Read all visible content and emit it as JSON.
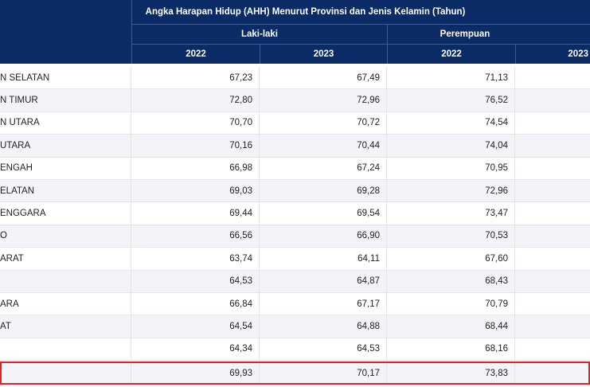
{
  "table": {
    "title": "Angka Harapan Hidup (AHH) Menurut Provinsi dan Jenis Kelamin (Tahun)",
    "groups": [
      "Laki-laki",
      "Perempuan"
    ],
    "years": [
      "2022",
      "2023",
      "2022",
      "2023"
    ],
    "rows": [
      {
        "name": "N SELATAN",
        "values": [
          "67,23",
          "67,49",
          "71,13",
          ""
        ]
      },
      {
        "name": "N TIMUR",
        "values": [
          "72,80",
          "72,96",
          "76,52",
          ""
        ]
      },
      {
        "name": "N UTARA",
        "values": [
          "70,70",
          "70,72",
          "74,54",
          ""
        ]
      },
      {
        "name": "UTARA",
        "values": [
          "70,16",
          "70,44",
          "74,04",
          ""
        ]
      },
      {
        "name": "ENGAH",
        "values": [
          "66,98",
          "67,24",
          "70,95",
          ""
        ]
      },
      {
        "name": "ELATAN",
        "values": [
          "69,03",
          "69,28",
          "72,96",
          ""
        ]
      },
      {
        "name": "ENGGARA",
        "values": [
          "69,44",
          "69,54",
          "73,47",
          ""
        ]
      },
      {
        "name": "O",
        "values": [
          "66,56",
          "66,90",
          "70,53",
          ""
        ]
      },
      {
        "name": "ARAT",
        "values": [
          "63,74",
          "64,11",
          "67,60",
          ""
        ]
      },
      {
        "name": "",
        "values": [
          "64,53",
          "64,87",
          "68,43",
          ""
        ]
      },
      {
        "name": "ARA",
        "values": [
          "66,84",
          "67,17",
          "70,79",
          ""
        ]
      },
      {
        "name": "AT",
        "values": [
          "64,54",
          "64,88",
          "68,44",
          ""
        ]
      },
      {
        "name": "",
        "values": [
          "64,34",
          "64,53",
          "68,16",
          ""
        ]
      },
      {
        "name": "",
        "values": [
          "69,93",
          "70,17",
          "73,83",
          ""
        ]
      }
    ]
  },
  "colors": {
    "header_bg": "#0a2b66",
    "highlight": "#e02424",
    "alt_row": "#f2f4f7"
  }
}
